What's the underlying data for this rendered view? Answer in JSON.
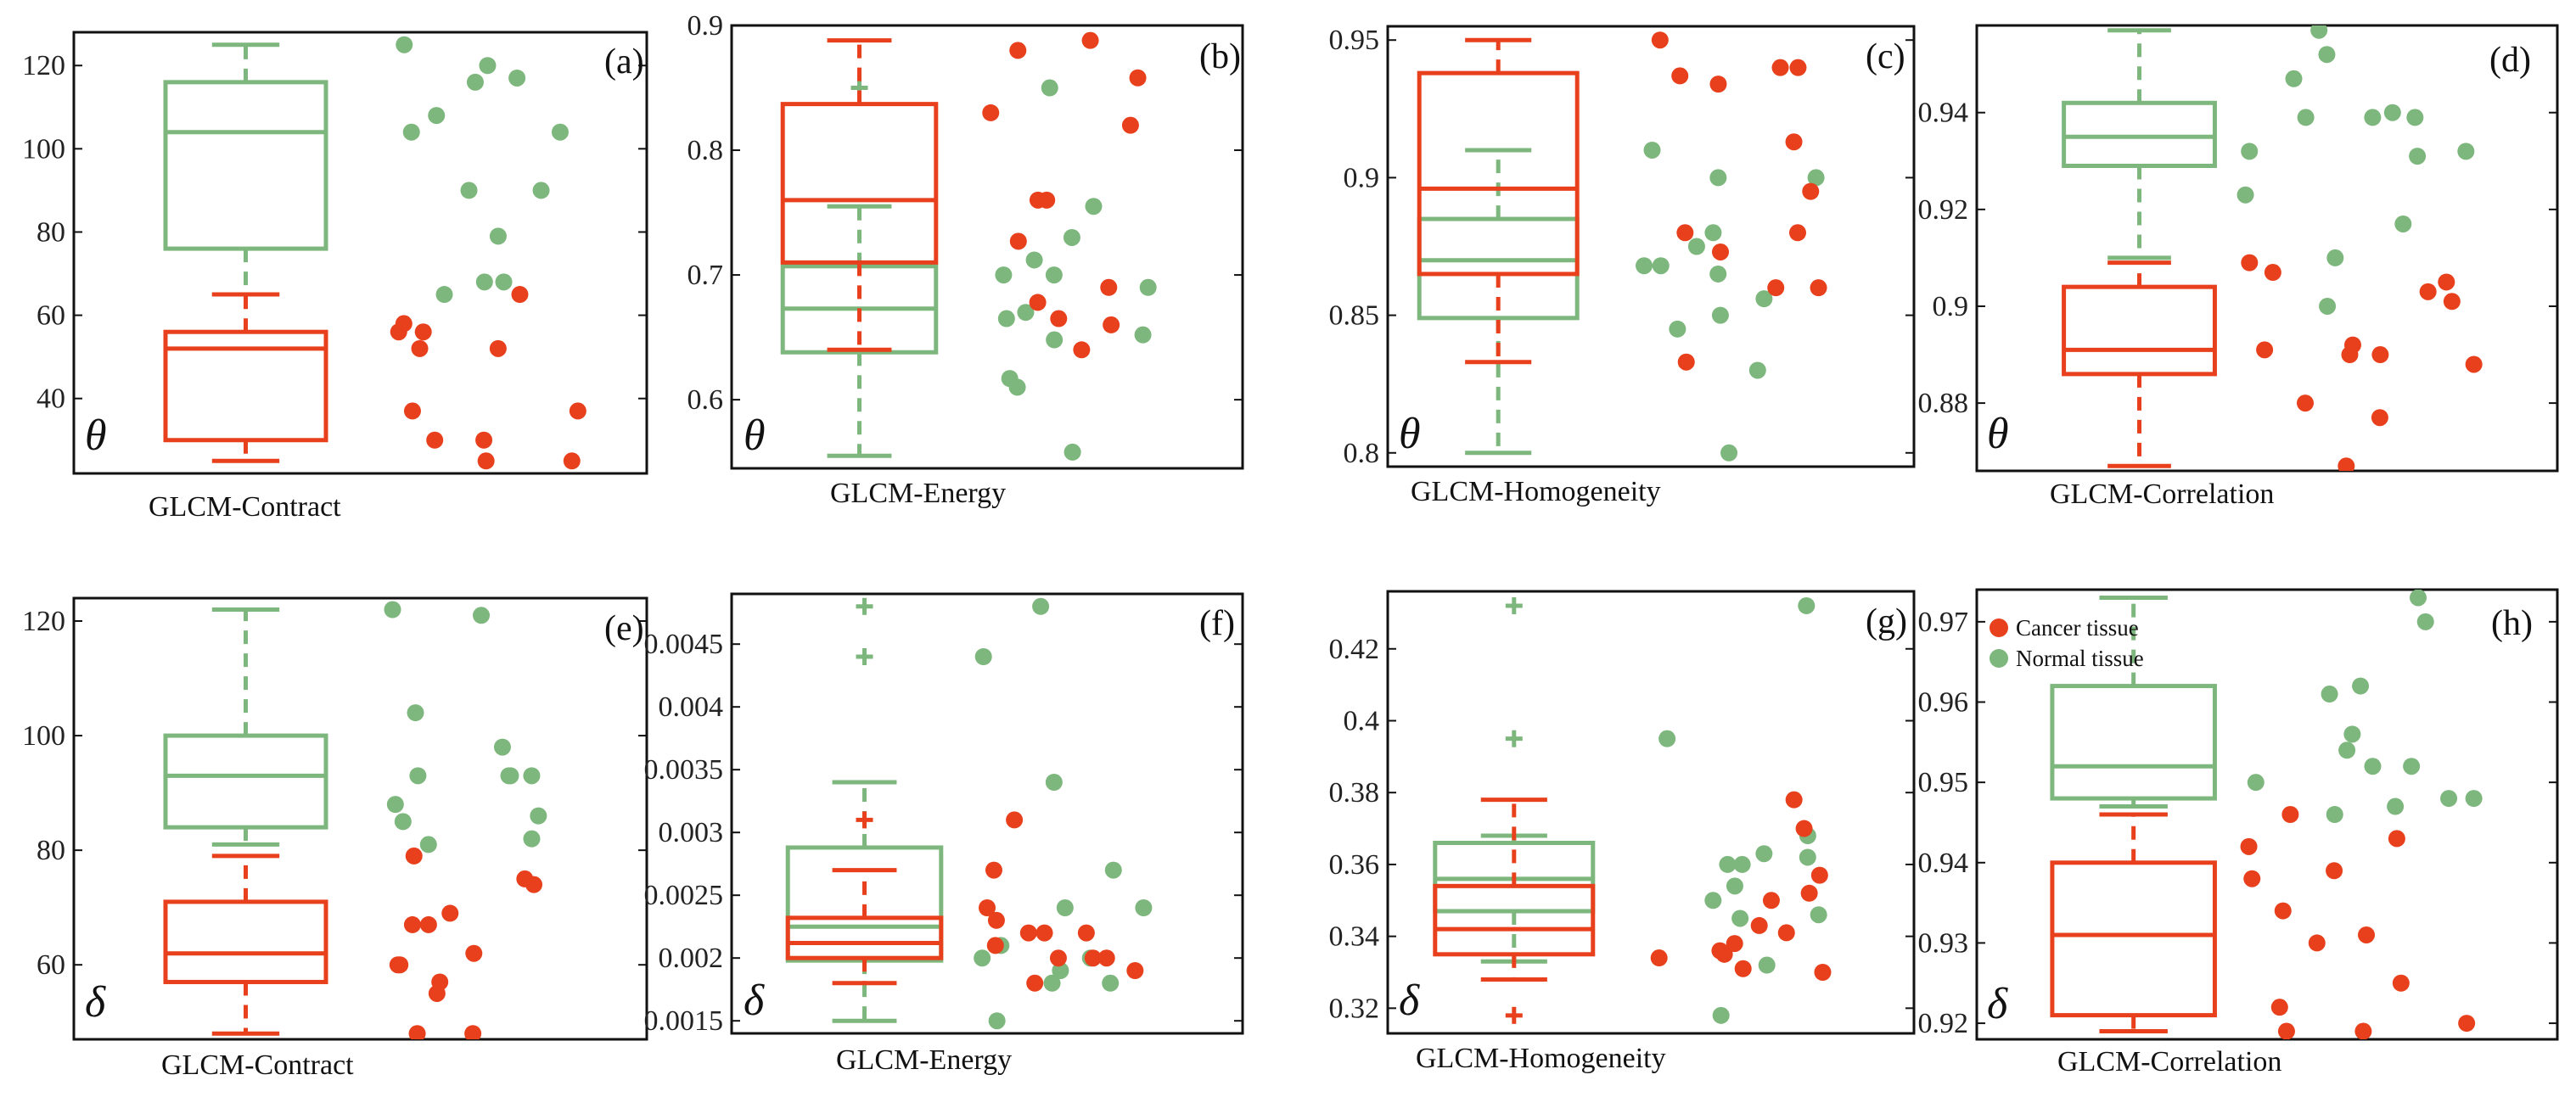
{
  "colors": {
    "cancer": "#E8401C",
    "normal": "#7DB77D"
  },
  "legend": [
    {
      "label": "Cancer tissue",
      "key": "cancer"
    },
    {
      "label": "Normal tissue",
      "key": "normal"
    }
  ],
  "chart_data": [
    {
      "letter": "(a)",
      "symbol": "θ",
      "xlabel": "GLCM-Contract",
      "type": "box+strip",
      "ylim": [
        22,
        128
      ],
      "yticks": [
        40,
        60,
        80,
        100,
        120
      ],
      "tick_labels": [
        "40",
        "60",
        "80",
        "100",
        "120"
      ],
      "normal": {
        "whisker_low": 65,
        "q1": 76,
        "median": 104,
        "q3": 116,
        "whisker_high": 125,
        "outliers": [],
        "points": [
          68,
          79,
          104,
          108,
          116,
          120,
          125,
          104,
          68,
          90,
          65,
          90,
          117
        ]
      },
      "cancer": {
        "whisker_low": 25,
        "q1": 30,
        "median": 52,
        "q3": 56,
        "whisker_high": 65,
        "outliers": [],
        "points": [
          58,
          25,
          30,
          65,
          52,
          52,
          30,
          56,
          56,
          25,
          37,
          37
        ]
      }
    },
    {
      "letter": "(b)",
      "symbol": "θ",
      "xlabel": "GLCM-Energy",
      "type": "box+strip",
      "ylim": [
        0.545,
        0.9
      ],
      "yticks": [
        0.6,
        0.7,
        0.8,
        0.9
      ],
      "tick_labels": [
        "0.6",
        "0.7",
        "0.8",
        "0.9"
      ],
      "normal": {
        "whisker_low": 0.555,
        "q1": 0.638,
        "median": 0.673,
        "q3": 0.707,
        "whisker_high": 0.755,
        "outliers": [
          0.85
        ],
        "points": [
          0.7,
          0.652,
          0.617,
          0.85,
          0.558,
          0.755,
          0.67,
          0.665,
          0.69,
          0.648,
          0.61,
          0.73,
          0.712,
          0.7
        ]
      },
      "cancer": {
        "whisker_low": 0.64,
        "q1": 0.71,
        "median": 0.76,
        "q3": 0.837,
        "whisker_high": 0.888,
        "outliers": [],
        "points": [
          0.66,
          0.76,
          0.678,
          0.83,
          0.858,
          0.727,
          0.82,
          0.665,
          0.88,
          0.64,
          0.76,
          0.69,
          0.888
        ]
      }
    },
    {
      "letter": "(c)",
      "symbol": "θ",
      "xlabel": "GLCM-Homogeneity",
      "type": "box+strip",
      "ylim": [
        0.795,
        0.955
      ],
      "yticks": [
        0.8,
        0.85,
        0.9,
        0.95
      ],
      "tick_labels": [
        "0.8",
        "0.85",
        "0.9",
        "0.95"
      ],
      "normal": {
        "whisker_low": 0.8,
        "q1": 0.849,
        "median": 0.87,
        "q3": 0.885,
        "whisker_high": 0.91,
        "outliers": [],
        "points": [
          0.868,
          0.845,
          0.85,
          0.91,
          0.868,
          0.88,
          0.856,
          0.83,
          0.9,
          0.875,
          0.865,
          0.8,
          0.9
        ]
      },
      "cancer": {
        "whisker_low": 0.833,
        "q1": 0.865,
        "median": 0.896,
        "q3": 0.938,
        "whisker_high": 0.95,
        "outliers": [],
        "points": [
          0.913,
          0.873,
          0.934,
          0.88,
          0.937,
          0.86,
          0.95,
          0.833,
          0.94,
          0.88,
          0.86,
          0.895,
          0.94
        ]
      }
    },
    {
      "letter": "(d)",
      "symbol": "θ",
      "xlabel": "GLCM-Correlation",
      "type": "box+strip",
      "ylim": [
        0.866,
        0.958
      ],
      "yticks": [
        0.88,
        0.9,
        0.92,
        0.94
      ],
      "tick_labels": [
        "0.88",
        "0.9",
        "0.92",
        "0.94"
      ],
      "normal": {
        "whisker_low": 0.91,
        "q1": 0.929,
        "median": 0.935,
        "q3": 0.942,
        "whisker_high": 0.957,
        "outliers": [],
        "points": [
          0.931,
          0.94,
          0.939,
          0.932,
          0.957,
          0.952,
          0.947,
          0.91,
          0.917,
          0.939,
          0.939,
          0.932,
          0.923,
          0.9
        ]
      },
      "cancer": {
        "whisker_low": 0.867,
        "q1": 0.886,
        "median": 0.891,
        "q3": 0.904,
        "whisker_high": 0.909,
        "outliers": [],
        "points": [
          0.877,
          0.867,
          0.891,
          0.888,
          0.89,
          0.905,
          0.89,
          0.892,
          0.907,
          0.903,
          0.901,
          0.88,
          0.909
        ]
      }
    },
    {
      "letter": "(e)",
      "symbol": "δ",
      "xlabel": "GLCM-Contract",
      "type": "box+strip",
      "ylim": [
        47,
        124
      ],
      "yticks": [
        60,
        80,
        100,
        120
      ],
      "tick_labels": [
        "60",
        "80",
        "100",
        "120"
      ],
      "normal": {
        "whisker_low": 81,
        "q1": 84,
        "median": 93,
        "q3": 100,
        "whisker_high": 122,
        "outliers": [],
        "points": [
          104,
          93,
          93,
          98,
          86,
          81,
          93,
          93,
          88,
          85,
          122,
          121,
          82
        ]
      },
      "cancer": {
        "whisker_low": 48,
        "q1": 57,
        "median": 62,
        "q3": 71,
        "whisker_high": 79,
        "outliers": [],
        "points": [
          74,
          79,
          62,
          60,
          55,
          48,
          60,
          69,
          67,
          57,
          75,
          67,
          48
        ]
      }
    },
    {
      "letter": "(f)",
      "symbol": "δ",
      "xlabel": "GLCM-Energy",
      "type": "box+strip",
      "ylim": [
        0.0014,
        0.0049
      ],
      "yticks": [
        0.0015,
        0.002,
        0.0025,
        0.003,
        0.0035,
        0.004,
        0.0045
      ],
      "tick_labels": [
        "0.0015",
        "0.002",
        "0.0025",
        "0.003",
        "0.0035",
        "0.004",
        "0.0045"
      ],
      "normal": {
        "whisker_low": 0.0015,
        "q1": 0.00198,
        "median": 0.00225,
        "q3": 0.00288,
        "whisker_high": 0.0034,
        "outliers": [
          0.0044,
          0.0048
        ],
        "points": [
          0.002,
          0.002,
          0.0015,
          0.0018,
          0.0021,
          0.0024,
          0.0034,
          0.0044,
          0.0027,
          0.0019,
          0.0018,
          0.0048,
          0.0024
        ]
      },
      "cancer": {
        "whisker_low": 0.0018,
        "q1": 0.002,
        "median": 0.00212,
        "q3": 0.00232,
        "whisker_high": 0.0027,
        "outliers": [
          0.0031
        ],
        "points": [
          0.002,
          0.002,
          0.0022,
          0.0022,
          0.0021,
          0.0019,
          0.0023,
          0.0027,
          0.0031,
          0.0018,
          0.0024,
          0.0022,
          0.002
        ]
      }
    },
    {
      "letter": "(g)",
      "symbol": "δ",
      "xlabel": "GLCM-Homogeneity",
      "type": "box+strip",
      "ylim": [
        0.313,
        0.436
      ],
      "yticks": [
        0.32,
        0.34,
        0.36,
        0.38,
        0.4,
        0.42
      ],
      "tick_labels": [
        "0.32",
        "0.34",
        "0.36",
        "0.38",
        "0.4",
        "0.42"
      ],
      "normal": {
        "whisker_low": 0.333,
        "q1": 0.347,
        "median": 0.356,
        "q3": 0.366,
        "whisker_high": 0.368,
        "outliers": [
          0.395,
          0.432
        ],
        "points": [
          0.35,
          0.36,
          0.362,
          0.345,
          0.318,
          0.395,
          0.432,
          0.363,
          0.354,
          0.368,
          0.332,
          0.36,
          0.346
        ]
      },
      "cancer": {
        "whisker_low": 0.328,
        "q1": 0.335,
        "median": 0.342,
        "q3": 0.354,
        "whisker_high": 0.378,
        "outliers": [
          0.318
        ],
        "points": [
          0.37,
          0.336,
          0.338,
          0.35,
          0.341,
          0.352,
          0.331,
          0.33,
          0.343,
          0.378,
          0.335,
          0.334,
          0.357
        ]
      }
    },
    {
      "letter": "(h)",
      "symbol": "δ",
      "xlabel": "GLCM-Correlation",
      "type": "box+strip",
      "ylim": [
        0.918,
        0.974
      ],
      "yticks": [
        0.92,
        0.93,
        0.94,
        0.95,
        0.96,
        0.97
      ],
      "tick_labels": [
        "0.92",
        "0.93",
        "0.94",
        "0.95",
        "0.96",
        "0.97"
      ],
      "normal": {
        "whisker_low": 0.947,
        "q1": 0.948,
        "median": 0.952,
        "q3": 0.962,
        "whisker_high": 0.973,
        "outliers": [],
        "points": [
          0.952,
          0.947,
          0.946,
          0.973,
          0.97,
          0.962,
          0.954,
          0.948,
          0.952,
          0.95,
          0.961,
          0.956,
          0.948
        ]
      },
      "cancer": {
        "whisker_low": 0.919,
        "q1": 0.921,
        "median": 0.931,
        "q3": 0.94,
        "whisker_high": 0.946,
        "outliers": [],
        "points": [
          0.943,
          0.922,
          0.925,
          0.934,
          0.946,
          0.931,
          0.93,
          0.942,
          0.92,
          0.919,
          0.938,
          0.939,
          0.919
        ]
      }
    }
  ]
}
